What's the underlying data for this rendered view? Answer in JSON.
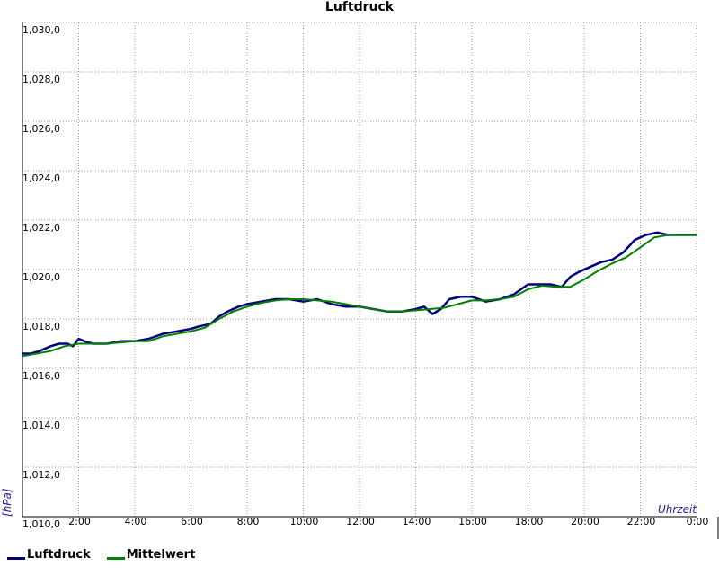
{
  "chart_data": {
    "type": "line",
    "title": "Luftdruck",
    "ylabel": "[hPa]",
    "xlabel": "Uhrzeit",
    "ylim": [
      1010,
      1030
    ],
    "xlim": [
      0,
      24
    ],
    "y_ticks": [
      {
        "value": 1010,
        "label": "1,010,0"
      },
      {
        "value": 1012,
        "label": "1,012,0"
      },
      {
        "value": 1014,
        "label": "1,014,0"
      },
      {
        "value": 1016,
        "label": "1,016,0"
      },
      {
        "value": 1018,
        "label": "1,018,0"
      },
      {
        "value": 1020,
        "label": "1,020,0"
      },
      {
        "value": 1022,
        "label": "1,022,0"
      },
      {
        "value": 1024,
        "label": "1,024,0"
      },
      {
        "value": 1026,
        "label": "1,026,0"
      },
      {
        "value": 1028,
        "label": "1,028,0"
      },
      {
        "value": 1030,
        "label": "1,030,0"
      }
    ],
    "x_ticks": [
      {
        "value": 2,
        "label": "2:00"
      },
      {
        "value": 4,
        "label": "4:00"
      },
      {
        "value": 6,
        "label": "6:00"
      },
      {
        "value": 8,
        "label": "8:00"
      },
      {
        "value": 10,
        "label": "10:00"
      },
      {
        "value": 12,
        "label": "12:00"
      },
      {
        "value": 14,
        "label": "14:00"
      },
      {
        "value": 16,
        "label": "16:00"
      },
      {
        "value": 18,
        "label": "18:00"
      },
      {
        "value": 20,
        "label": "20:00"
      },
      {
        "value": 22,
        "label": "22:00"
      },
      {
        "value": 24,
        "label": "0:00"
      }
    ],
    "grid": true,
    "legend_position": "bottom-left",
    "series": [
      {
        "name": "Luftdruck",
        "color": "#000080",
        "x": [
          0,
          0.3,
          0.6,
          1.0,
          1.3,
          1.6,
          1.8,
          2.0,
          2.2,
          2.5,
          3.0,
          3.5,
          4.0,
          4.5,
          5.0,
          5.5,
          6.0,
          6.3,
          6.7,
          7.0,
          7.3,
          7.7,
          8.0,
          8.5,
          9.0,
          9.5,
          10.0,
          10.5,
          11.0,
          11.5,
          12.0,
          12.5,
          13.0,
          13.5,
          14.0,
          14.3,
          14.6,
          14.9,
          15.2,
          15.6,
          16.0,
          16.5,
          17.0,
          17.5,
          18.0,
          18.4,
          18.8,
          19.2,
          19.5,
          19.8,
          20.2,
          20.6,
          21.0,
          21.4,
          21.8,
          22.2,
          22.6,
          23.0,
          23.5,
          24.0
        ],
        "values": [
          1016.6,
          1016.6,
          1016.7,
          1016.9,
          1017.0,
          1017.0,
          1016.9,
          1017.2,
          1017.1,
          1017.0,
          1017.0,
          1017.1,
          1017.1,
          1017.2,
          1017.4,
          1017.5,
          1017.6,
          1017.7,
          1017.8,
          1018.1,
          1018.3,
          1018.5,
          1018.6,
          1018.7,
          1018.8,
          1018.8,
          1018.7,
          1018.8,
          1018.6,
          1018.5,
          1018.5,
          1018.4,
          1018.3,
          1018.3,
          1018.4,
          1018.5,
          1018.2,
          1018.4,
          1018.8,
          1018.9,
          1018.9,
          1018.7,
          1018.8,
          1019.0,
          1019.4,
          1019.4,
          1019.4,
          1019.3,
          1019.7,
          1019.9,
          1020.1,
          1020.3,
          1020.4,
          1020.7,
          1021.2,
          1021.4,
          1021.5,
          1021.4,
          1021.4,
          1021.4
        ]
      },
      {
        "name": "Mittelwert",
        "color": "#008000",
        "x": [
          0,
          0.5,
          1.0,
          1.5,
          2.0,
          2.5,
          3.0,
          3.5,
          4.0,
          4.5,
          5.0,
          5.5,
          6.0,
          6.5,
          7.0,
          7.5,
          8.0,
          8.5,
          9.0,
          9.5,
          10.0,
          10.5,
          11.0,
          11.5,
          12.0,
          12.5,
          13.0,
          13.5,
          14.0,
          14.5,
          15.0,
          15.5,
          16.0,
          16.5,
          17.0,
          17.5,
          18.0,
          18.5,
          19.0,
          19.5,
          20.0,
          20.5,
          21.0,
          21.5,
          22.0,
          22.5,
          23.0,
          23.5,
          24.0
        ],
        "values": [
          1016.5,
          1016.6,
          1016.7,
          1016.9,
          1017.0,
          1017.0,
          1017.0,
          1017.05,
          1017.1,
          1017.1,
          1017.3,
          1017.4,
          1017.5,
          1017.65,
          1018.0,
          1018.3,
          1018.5,
          1018.65,
          1018.75,
          1018.8,
          1018.8,
          1018.75,
          1018.7,
          1018.6,
          1018.5,
          1018.4,
          1018.3,
          1018.3,
          1018.35,
          1018.4,
          1018.45,
          1018.6,
          1018.75,
          1018.75,
          1018.8,
          1018.9,
          1019.2,
          1019.35,
          1019.3,
          1019.3,
          1019.6,
          1019.95,
          1020.25,
          1020.5,
          1020.9,
          1021.3,
          1021.4,
          1021.4,
          1021.4
        ]
      }
    ]
  },
  "legend": [
    {
      "label": "Luftdruck",
      "color": "#000080"
    },
    {
      "label": "Mittelwert",
      "color": "#008000"
    }
  ]
}
